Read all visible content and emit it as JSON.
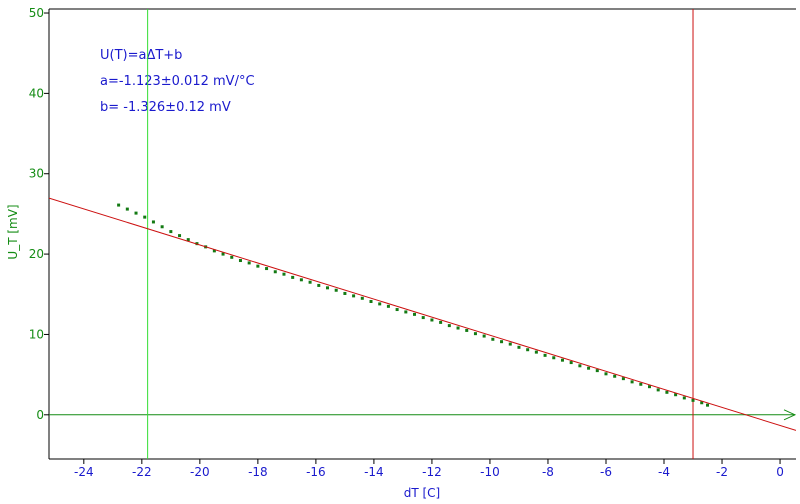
{
  "chart_data": {
    "type": "scatter",
    "xlabel": "dT [C]",
    "ylabel": "U_T [mV]",
    "xlim": [
      -25.2,
      0.55
    ],
    "ylim": [
      -5.5,
      50.5
    ],
    "x_ticks": [
      -24,
      -22,
      -20,
      -18,
      -16,
      -14,
      -12,
      -10,
      -8,
      -6,
      -4,
      -2,
      0
    ],
    "y_ticks": [
      0,
      10,
      20,
      30,
      40,
      50
    ],
    "annotations": [
      "U(T)=aΔT+b",
      "a=-1.123±0.012 mV/°C",
      "b= -1.326±0.12 mV"
    ],
    "fit_line": {
      "slope": -1.123,
      "intercept": -1.326
    },
    "vertical_markers": [
      -21.8,
      -3.0
    ],
    "zero_axis_y": 0,
    "series": [
      {
        "x": [
          -22.8,
          -22.5,
          -22.2,
          -21.9,
          -21.6,
          -21.3,
          -21.0,
          -20.7,
          -20.4,
          -20.1,
          -19.8,
          -19.5,
          -19.2,
          -18.9,
          -18.6,
          -18.3,
          -18.0,
          -17.7,
          -17.4,
          -17.1,
          -16.8,
          -16.5,
          -16.2,
          -15.9,
          -15.6,
          -15.3,
          -15.0,
          -14.7,
          -14.4,
          -14.1,
          -13.8,
          -13.5,
          -13.2,
          -12.9,
          -12.6,
          -12.3,
          -12.0,
          -11.7,
          -11.4,
          -11.1,
          -10.8,
          -10.5,
          -10.2,
          -9.9,
          -9.6,
          -9.3,
          -9.0,
          -8.7,
          -8.4,
          -8.1,
          -7.8,
          -7.5,
          -7.2,
          -6.9,
          -6.6,
          -6.3,
          -6.0,
          -5.7,
          -5.4,
          -5.1,
          -4.8,
          -4.5,
          -4.2,
          -3.9,
          -3.6,
          -3.3,
          -3.0,
          -2.7,
          -2.5
        ],
        "y": [
          26.1,
          25.6,
          25.1,
          24.6,
          24.0,
          23.4,
          22.8,
          22.3,
          21.8,
          21.3,
          20.9,
          20.4,
          20.0,
          19.6,
          19.2,
          18.9,
          18.5,
          18.2,
          17.8,
          17.5,
          17.1,
          16.8,
          16.5,
          16.1,
          15.8,
          15.5,
          15.1,
          14.8,
          14.5,
          14.1,
          13.8,
          13.5,
          13.1,
          12.8,
          12.5,
          12.1,
          11.8,
          11.5,
          11.1,
          10.8,
          10.5,
          10.1,
          9.8,
          9.4,
          9.1,
          8.8,
          8.4,
          8.1,
          7.8,
          7.4,
          7.1,
          6.8,
          6.5,
          6.1,
          5.8,
          5.5,
          5.1,
          4.8,
          4.5,
          4.1,
          3.8,
          3.5,
          3.1,
          2.8,
          2.5,
          2.1,
          1.8,
          1.5,
          1.2
        ]
      }
    ],
    "colors": {
      "points": "#137a13",
      "fit_line": "#cc1010",
      "left_marker": "#33dd33",
      "right_marker": "#cc1010",
      "zero_axis": "#148c14",
      "x_text": "#1a1acd",
      "y_text": "#148c14",
      "frame": "#000000"
    },
    "grid": false
  }
}
